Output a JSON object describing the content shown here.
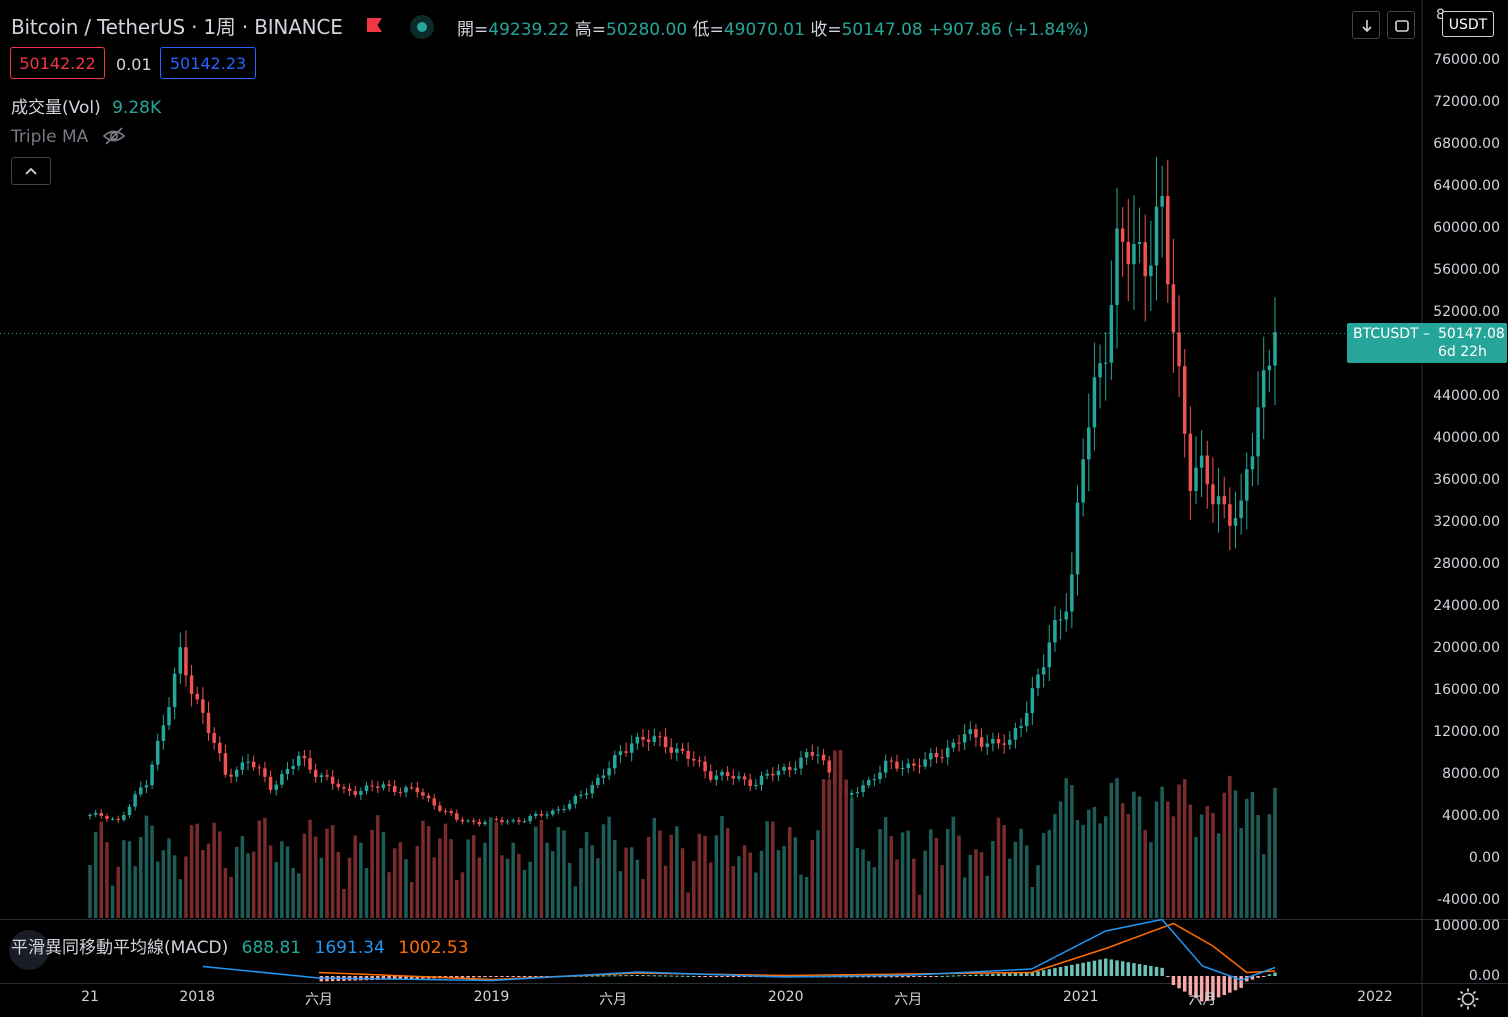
{
  "header": {
    "title": "Bitcoin / TetherUS · 1周 · BINANCE",
    "ohlc": {
      "open_label": "開=",
      "open": "49239.22",
      "high_label": "高=",
      "high": "50280.00",
      "low_label": "低=",
      "low": "49070.01",
      "close_label": "收=",
      "close": "50147.08",
      "change": "+907.86 (+1.84%)"
    }
  },
  "trade": {
    "sell_price": "50142.22",
    "spread": "0.01",
    "buy_price": "50142.23"
  },
  "indicators": {
    "volume": {
      "label": "成交量(Vol)",
      "value": "9.28K"
    },
    "triple_ma": {
      "label": "Triple MA"
    },
    "macd": {
      "label": "平滑異同移動平均線(MACD)",
      "hist": "688.81",
      "macd": "1691.34",
      "signal": "1002.53"
    }
  },
  "toolbar": {
    "currency": "USDT",
    "clipped_top_label": "8"
  },
  "price_tag": {
    "symbol": "BTCUSDT",
    "price": "50147.08",
    "countdown": "6d 22h"
  },
  "price_axis": [
    "76000.00",
    "72000.00",
    "68000.00",
    "64000.00",
    "60000.00",
    "56000.00",
    "52000.00",
    "44000.00",
    "40000.00",
    "36000.00",
    "32000.00",
    "28000.00",
    "24000.00",
    "20000.00",
    "16000.00",
    "12000.00",
    "8000.00",
    "4000.00",
    "0.00",
    "-4000.00"
  ],
  "macd_axis": [
    "10000.00",
    "0.00"
  ],
  "time_axis": [
    "21",
    "2018",
    "六月",
    "2019",
    "六月",
    "2020",
    "六月",
    "2021",
    "六月",
    "2022"
  ],
  "colors": {
    "up": "#26a69a",
    "down": "#ef5350",
    "up_vol": "#1e5c58",
    "down_vol": "#7a2b2b",
    "macd": "#2196f3",
    "signal": "#ff6d00",
    "background": "#000000"
  },
  "chart_data": {
    "type": "candlestick",
    "symbol": "BTCUSDT",
    "interval": "1W",
    "ylim": [
      -4000,
      80000
    ],
    "series": [
      {
        "name": "price_anchors_close",
        "points": [
          {
            "x": "2017-08-21",
            "close": 4300
          },
          {
            "x": "2017-09-25",
            "close": 3800
          },
          {
            "x": "2017-10-30",
            "close": 7300
          },
          {
            "x": "2017-12-11",
            "close": 19000
          },
          {
            "x": "2018-01-08",
            "close": 14000
          },
          {
            "x": "2018-02-05",
            "close": 8000
          },
          {
            "x": "2018-03-05",
            "close": 9500
          },
          {
            "x": "2018-04-02",
            "close": 7000
          },
          {
            "x": "2018-05-07",
            "close": 9600
          },
          {
            "x": "2018-07-02",
            "close": 6500
          },
          {
            "x": "2018-08-20",
            "close": 7000
          },
          {
            "x": "2018-10-01",
            "close": 6500
          },
          {
            "x": "2018-11-19",
            "close": 3800
          },
          {
            "x": "2018-12-17",
            "close": 3600
          },
          {
            "x": "2019-02-11",
            "close": 3800
          },
          {
            "x": "2019-04-08",
            "close": 5200
          },
          {
            "x": "2019-05-27",
            "close": 8700
          },
          {
            "x": "2019-06-24",
            "close": 11500
          },
          {
            "x": "2019-08-05",
            "close": 11200
          },
          {
            "x": "2019-09-30",
            "close": 8200
          },
          {
            "x": "2019-11-25",
            "close": 7400
          },
          {
            "x": "2020-02-10",
            "close": 10200
          },
          {
            "x": "2020-03-16",
            "close": 5800
          },
          {
            "x": "2020-05-04",
            "close": 8900
          },
          {
            "x": "2020-06-22",
            "close": 9200
          },
          {
            "x": "2020-08-10",
            "close": 11800
          },
          {
            "x": "2020-10-05",
            "close": 10900
          },
          {
            "x": "2020-11-16",
            "close": 18500
          },
          {
            "x": "2020-12-21",
            "close": 27000
          },
          {
            "x": "2021-01-04",
            "close": 38000
          },
          {
            "x": "2021-02-15",
            "close": 57000
          },
          {
            "x": "2021-03-15",
            "close": 58000
          },
          {
            "x": "2021-04-12",
            "close": 60000
          },
          {
            "x": "2021-05-17",
            "close": 37000
          },
          {
            "x": "2021-06-21",
            "close": 34500
          },
          {
            "x": "2021-07-19",
            "close": 32000
          },
          {
            "x": "2021-08-09",
            "close": 44000
          },
          {
            "x": "2021-08-30",
            "close": 50147.08
          }
        ]
      },
      {
        "name": "MACD",
        "points": [
          {
            "x": "2018-01-08",
            "value": 1900
          },
          {
            "x": "2018-06-01",
            "value": -400
          },
          {
            "x": "2019-01-01",
            "value": -900
          },
          {
            "x": "2019-07-01",
            "value": 800
          },
          {
            "x": "2020-01-01",
            "value": -200
          },
          {
            "x": "2020-06-01",
            "value": 150
          },
          {
            "x": "2020-11-01",
            "value": 1400
          },
          {
            "x": "2021-02-01",
            "value": 9000
          },
          {
            "x": "2021-04-12",
            "value": 11300
          },
          {
            "x": "2021-06-01",
            "value": 2000
          },
          {
            "x": "2021-07-19",
            "value": -800
          },
          {
            "x": "2021-08-30",
            "value": 1691.34
          }
        ]
      },
      {
        "name": "Signal",
        "points": [
          {
            "x": "2018-06-01",
            "value": 700
          },
          {
            "x": "2019-01-01",
            "value": -700
          },
          {
            "x": "2019-07-01",
            "value": 600
          },
          {
            "x": "2020-01-01",
            "value": 100
          },
          {
            "x": "2020-11-01",
            "value": 700
          },
          {
            "x": "2021-02-01",
            "value": 5500
          },
          {
            "x": "2021-04-26",
            "value": 10500
          },
          {
            "x": "2021-06-14",
            "value": 6000
          },
          {
            "x": "2021-07-26",
            "value": 700
          },
          {
            "x": "2021-08-30",
            "value": 1002.53
          }
        ]
      }
    ]
  }
}
